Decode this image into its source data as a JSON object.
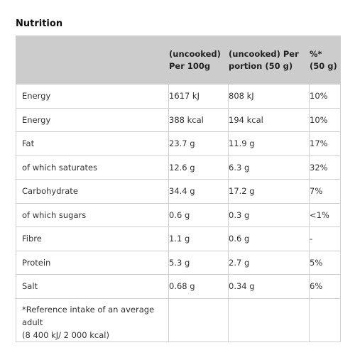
{
  "title": "Nutrition",
  "table": {
    "headers": [
      "",
      "(uncooked) Per 100g",
      "(uncooked) Per portion (50 g)",
      "%* (50 g)"
    ],
    "rows": [
      {
        "nutrient": "Energy",
        "per100": "1617 kJ",
        "portion": "808 kJ",
        "ri": "10%"
      },
      {
        "nutrient": "Energy",
        "per100": "388 kcal",
        "portion": "194 kcal",
        "ri": "10%"
      },
      {
        "nutrient": "Fat",
        "per100": "23.7 g",
        "portion": "11.9 g",
        "ri": "17%"
      },
      {
        "nutrient": "of which saturates",
        "per100": "12.6 g",
        "portion": "6.3 g",
        "ri": "32%"
      },
      {
        "nutrient": "Carbohydrate",
        "per100": "34.4 g",
        "portion": "17.2 g",
        "ri": "7%"
      },
      {
        "nutrient": "of which sugars",
        "per100": "0.6 g",
        "portion": "0.3 g",
        "ri": "<1%"
      },
      {
        "nutrient": "Fibre",
        "per100": "1.1 g",
        "portion": "0.6 g",
        "ri": "-"
      },
      {
        "nutrient": "Protein",
        "per100": "5.3 g",
        "portion": "2.7 g",
        "ri": "5%"
      },
      {
        "nutrient": "Salt",
        "per100": "0.68 g",
        "portion": "0.34 g",
        "ri": "6%"
      }
    ],
    "footnote_line1": "*Reference intake of an average adult",
    "footnote_line2": "(8 400 kJ/ 2 000 kcal)"
  }
}
